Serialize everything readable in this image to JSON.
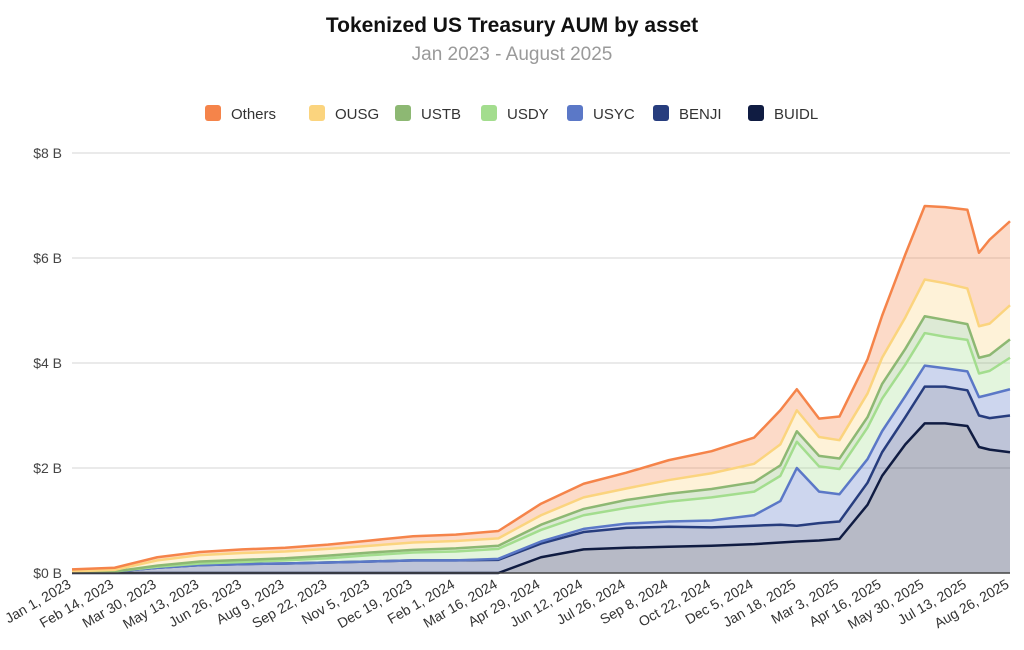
{
  "chart_data": {
    "type": "area",
    "stacked": true,
    "title": "Tokenized US Treasury AUM by asset",
    "subtitle": "Jan 2023 - August 2025",
    "xlabel": "",
    "ylabel": "",
    "y_unit": "$ B",
    "ylim": [
      0,
      8
    ],
    "y_ticks": [
      0,
      2,
      4,
      6,
      8
    ],
    "y_tick_labels": [
      "$0 B",
      "$2 B",
      "$4 B",
      "$6 B",
      "$8 B"
    ],
    "x_ticks": [
      "2023-01-01",
      "2023-02-14",
      "2023-03-30",
      "2023-05-13",
      "2023-06-26",
      "2023-08-09",
      "2023-09-22",
      "2023-11-05",
      "2023-12-19",
      "2024-02-01",
      "2024-03-16",
      "2024-04-29",
      "2024-06-12",
      "2024-07-26",
      "2024-09-08",
      "2024-10-22",
      "2024-12-05",
      "2025-01-18",
      "2025-03-03",
      "2025-04-16",
      "2025-05-30",
      "2025-07-13",
      "2025-08-26"
    ],
    "x_tick_labels": [
      "Jan 1, 2023",
      "Feb 14, 2023",
      "Mar 30, 2023",
      "May 13, 2023",
      "Jun 26, 2023",
      "Aug 9, 2023",
      "Sep 22, 2023",
      "Nov 5, 2023",
      "Dec 19, 2023",
      "Feb 1, 2024",
      "Mar 16, 2024",
      "Apr 29, 2024",
      "Jun 12, 2024",
      "Jul 26, 2024",
      "Sep 8, 2024",
      "Oct 22, 2024",
      "Dec 5, 2024",
      "Jan 18, 2025",
      "Mar 3, 2025",
      "Apr 16, 2025",
      "May 30, 2025",
      "Jul 13, 2025",
      "Aug 26, 2025"
    ],
    "x": [
      "2023-01-01",
      "2023-02-14",
      "2023-03-30",
      "2023-05-13",
      "2023-06-26",
      "2023-08-09",
      "2023-09-22",
      "2023-11-05",
      "2023-12-19",
      "2024-02-01",
      "2024-03-16",
      "2024-04-29",
      "2024-06-12",
      "2024-07-26",
      "2024-09-08",
      "2024-10-22",
      "2024-12-05",
      "2025-01-01",
      "2025-01-18",
      "2025-02-10",
      "2025-03-03",
      "2025-04-01",
      "2025-04-16",
      "2025-05-10",
      "2025-05-30",
      "2025-06-20",
      "2025-07-13",
      "2025-07-25",
      "2025-08-05",
      "2025-08-26"
    ],
    "legend_position": "top",
    "grid": true,
    "series": [
      {
        "name": "BUIDL",
        "color": "#101c42",
        "values": [
          0,
          0,
          0,
          0,
          0,
          0,
          0,
          0,
          0,
          0,
          0,
          0.3,
          0.45,
          0.48,
          0.5,
          0.52,
          0.55,
          0.58,
          0.6,
          0.62,
          0.65,
          1.3,
          1.85,
          2.45,
          2.85,
          2.85,
          2.8,
          2.4,
          2.35,
          2.3
        ]
      },
      {
        "name": "BENJI",
        "color": "#273d7e",
        "values": [
          0.02,
          0.03,
          0.1,
          0.15,
          0.17,
          0.18,
          0.2,
          0.22,
          0.24,
          0.24,
          0.25,
          0.26,
          0.33,
          0.38,
          0.38,
          0.35,
          0.35,
          0.34,
          0.3,
          0.33,
          0.33,
          0.42,
          0.45,
          0.52,
          0.7,
          0.7,
          0.68,
          0.6,
          0.6,
          0.7
        ]
      },
      {
        "name": "USYC",
        "color": "#5b78c7",
        "values": [
          0,
          0,
          0,
          0,
          0,
          0,
          0,
          0,
          0,
          0,
          0.02,
          0.04,
          0.06,
          0.08,
          0.1,
          0.13,
          0.2,
          0.45,
          1.1,
          0.6,
          0.52,
          0.45,
          0.4,
          0.4,
          0.4,
          0.35,
          0.36,
          0.35,
          0.45,
          0.5
        ]
      },
      {
        "name": "USDY",
        "color": "#a3dd8e",
        "values": [
          0,
          0,
          0.02,
          0.03,
          0.04,
          0.06,
          0.08,
          0.12,
          0.15,
          0.17,
          0.19,
          0.22,
          0.26,
          0.3,
          0.38,
          0.44,
          0.45,
          0.48,
          0.5,
          0.48,
          0.48,
          0.6,
          0.62,
          0.6,
          0.62,
          0.6,
          0.6,
          0.45,
          0.45,
          0.6
        ]
      },
      {
        "name": "USTB",
        "color": "#8db873",
        "values": [
          0,
          0,
          0.02,
          0.04,
          0.04,
          0.04,
          0.05,
          0.05,
          0.05,
          0.06,
          0.06,
          0.1,
          0.12,
          0.15,
          0.15,
          0.16,
          0.18,
          0.2,
          0.2,
          0.2,
          0.2,
          0.2,
          0.28,
          0.3,
          0.32,
          0.32,
          0.3,
          0.3,
          0.3,
          0.35
        ]
      },
      {
        "name": "OUSG",
        "color": "#fbd47e",
        "values": [
          0.01,
          0.03,
          0.1,
          0.12,
          0.13,
          0.13,
          0.13,
          0.13,
          0.14,
          0.14,
          0.14,
          0.18,
          0.22,
          0.22,
          0.26,
          0.3,
          0.35,
          0.4,
          0.4,
          0.36,
          0.35,
          0.45,
          0.5,
          0.6,
          0.7,
          0.7,
          0.68,
          0.6,
          0.6,
          0.65
        ]
      },
      {
        "name": "Others",
        "color": "#f5844a",
        "values": [
          0.04,
          0.04,
          0.06,
          0.06,
          0.07,
          0.07,
          0.08,
          0.1,
          0.12,
          0.12,
          0.14,
          0.22,
          0.26,
          0.3,
          0.38,
          0.42,
          0.5,
          0.65,
          0.4,
          0.35,
          0.45,
          0.65,
          0.8,
          1.2,
          1.4,
          1.45,
          1.5,
          1.4,
          1.6,
          1.6
        ]
      }
    ]
  }
}
